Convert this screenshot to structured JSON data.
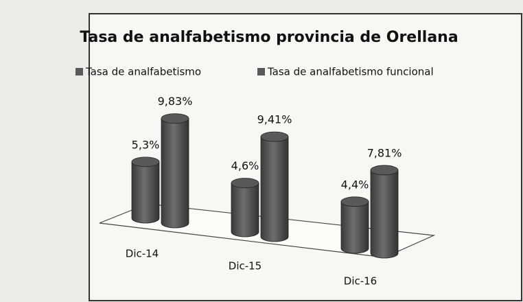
{
  "chart_data": {
    "type": "bar3d",
    "title": "Tasa de analfabetismo provincia de Orellana",
    "categories": [
      "Dic-14",
      "Dic-15",
      "Dic-16"
    ],
    "series": [
      {
        "name": "Tasa de analfabetismo",
        "color": "#595959",
        "values": [
          5.3,
          4.6,
          4.4
        ],
        "value_labels": [
          "5,3%",
          "4,6%",
          "4,4%"
        ]
      },
      {
        "name": "Tasa de analfabetismo funcional",
        "color": "#595959",
        "values": [
          9.83,
          9.41,
          7.81
        ],
        "value_labels": [
          "9,83%",
          "9,41%",
          "7,81%"
        ]
      }
    ]
  }
}
